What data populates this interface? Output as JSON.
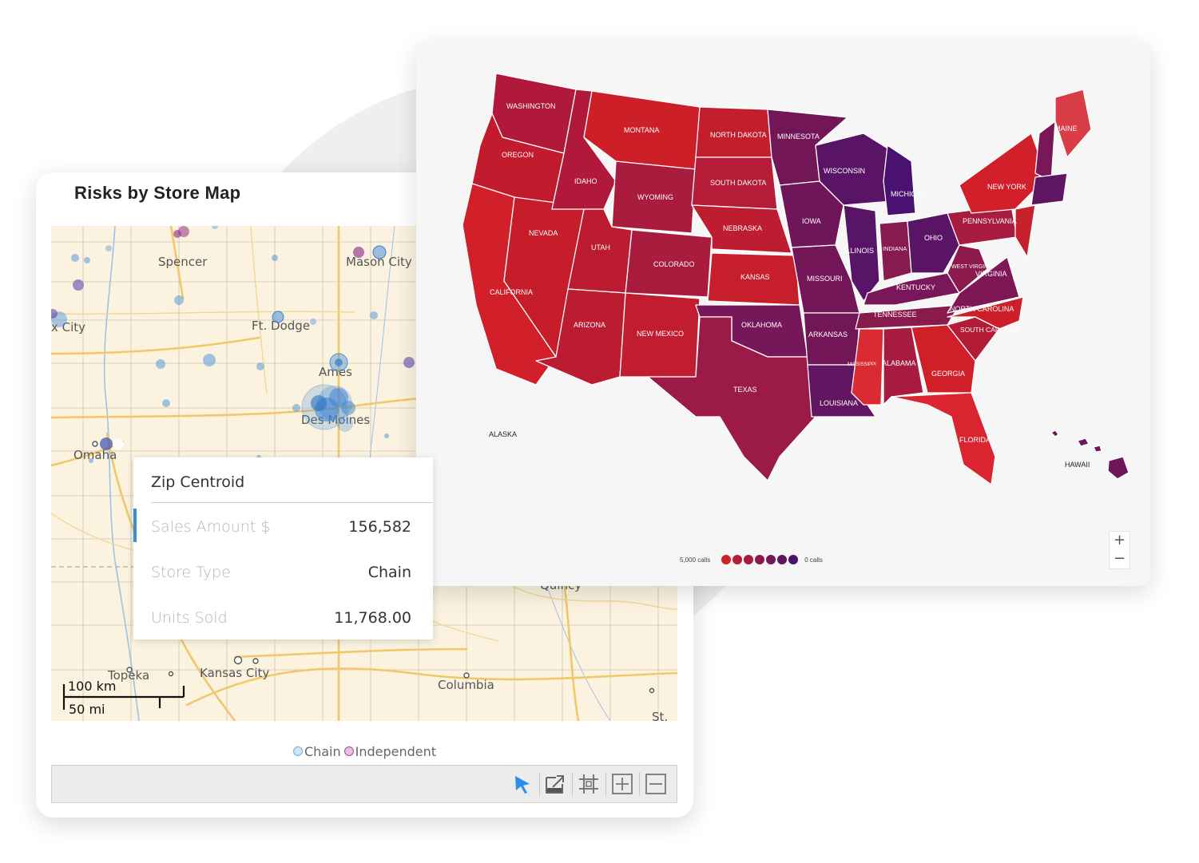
{
  "store_map": {
    "title": "Risks by Store Map",
    "cities": [
      {
        "name": "Spencer"
      },
      {
        "name": "Mason City"
      },
      {
        "name": "x City"
      },
      {
        "name": "Ft. Dodge"
      },
      {
        "name": "Ames"
      },
      {
        "name": "Des Moines"
      },
      {
        "name": "Omaha"
      },
      {
        "name": "Topeka"
      },
      {
        "name": "Kansas City"
      },
      {
        "name": "Columbia"
      },
      {
        "name": "Quincy"
      },
      {
        "name": "St."
      }
    ],
    "scale": {
      "km": "100 km",
      "mi": "50 mi"
    },
    "legend": {
      "chain": "Chain",
      "independent": "Independent"
    },
    "colors": {
      "chain": "#4a90d9",
      "independent": "#9b3f8f",
      "map_bg": "#fbf3df",
      "roads": "#f0c86c"
    },
    "tooltip": {
      "title": "Zip Centroid",
      "rows": [
        {
          "label": "Sales Amount $",
          "value": "156,582"
        },
        {
          "label": "Store Type",
          "value": "Chain"
        },
        {
          "label": "Units Sold",
          "value": "11,768.00"
        }
      ]
    },
    "toolbar": [
      "select-arrow-icon",
      "export-icon",
      "crop-icon",
      "zoom-in-icon",
      "zoom-out-icon"
    ]
  },
  "us_map": {
    "states": [
      {
        "name": "WASHINGTON"
      },
      {
        "name": "OREGON"
      },
      {
        "name": "CALIFORNIA"
      },
      {
        "name": "IDAHO"
      },
      {
        "name": "NEVADA"
      },
      {
        "name": "MONTANA"
      },
      {
        "name": "WYOMING"
      },
      {
        "name": "UTAH"
      },
      {
        "name": "ARIZONA"
      },
      {
        "name": "COLORADO"
      },
      {
        "name": "NEW MEXICO"
      },
      {
        "name": "NORTH DAKOTA"
      },
      {
        "name": "SOUTH DAKOTA"
      },
      {
        "name": "NEBRASKA"
      },
      {
        "name": "KANSAS"
      },
      {
        "name": "OKLAHOMA"
      },
      {
        "name": "TEXAS"
      },
      {
        "name": "MINNESOTA"
      },
      {
        "name": "IOWA"
      },
      {
        "name": "MISSOURI"
      },
      {
        "name": "ARKANSAS"
      },
      {
        "name": "LOUISIANA"
      },
      {
        "name": "WISCONSIN"
      },
      {
        "name": "ILLINOIS"
      },
      {
        "name": "MICHIGAN"
      },
      {
        "name": "INDIANA"
      },
      {
        "name": "OHIO"
      },
      {
        "name": "KENTUCKY"
      },
      {
        "name": "TENNESSEE"
      },
      {
        "name": "MISSISSIPPI"
      },
      {
        "name": "ALABAMA"
      },
      {
        "name": "GEORGIA"
      },
      {
        "name": "FLORIDA"
      },
      {
        "name": "SOUTH CAROLINA"
      },
      {
        "name": "NORTH CAROLINA"
      },
      {
        "name": "VIRGINIA"
      },
      {
        "name": "WEST VIRGINIA"
      },
      {
        "name": "PENNSYLVANIA"
      },
      {
        "name": "NEW YORK"
      },
      {
        "name": "MAINE"
      },
      {
        "name": "ALASKA"
      },
      {
        "name": "HAWAII"
      }
    ],
    "legend": {
      "high": "5,000 calls",
      "low": "0 calls",
      "scale_colors": [
        "#d1202a",
        "#c01f35",
        "#a91d40",
        "#90194c",
        "#791757",
        "#621560",
        "#4a1366"
      ]
    },
    "zoom": {
      "in": "+",
      "out": "−"
    }
  }
}
